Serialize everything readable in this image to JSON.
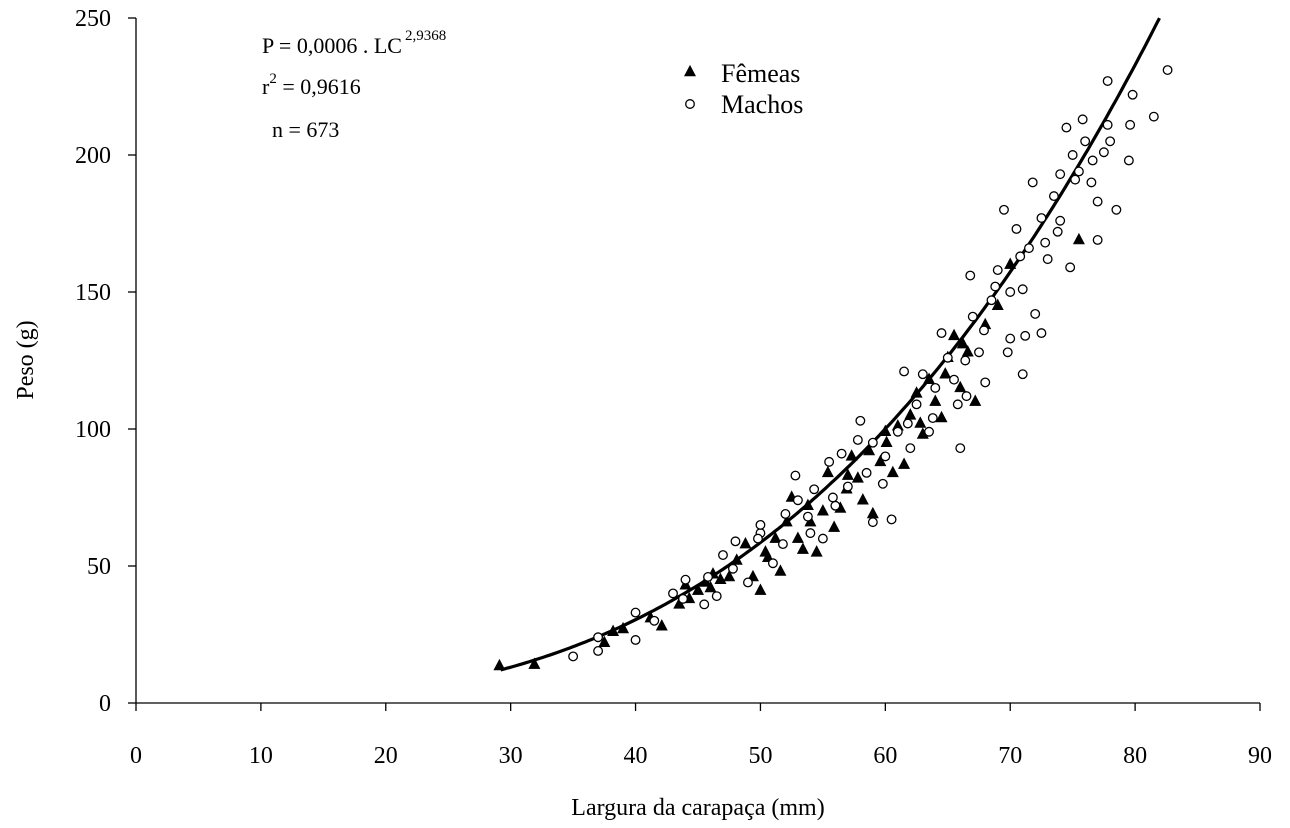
{
  "chart_data": {
    "type": "scatter",
    "xlabel": "Largura da carapaça (mm)",
    "ylabel": "Peso (g)",
    "xlim": [
      0,
      90
    ],
    "ylim": [
      0,
      250
    ],
    "xticks": [
      0,
      10,
      20,
      30,
      40,
      50,
      60,
      70,
      80,
      90
    ],
    "yticks": [
      0,
      50,
      100,
      150,
      200,
      250
    ],
    "grid": false,
    "legend_position": "top-center",
    "annotations": {
      "equation": {
        "main": "P = 0,0006 . LC",
        "exponent": "2,9368"
      },
      "r2": {
        "base": "r",
        "exponent": "2",
        "rest": " = 0,9616"
      },
      "n": "n = 673"
    },
    "fit": {
      "a": 0.0006,
      "b": 2.9368,
      "x_range": [
        29.2,
        84.2
      ]
    },
    "series": [
      {
        "name": "Fêmeas",
        "marker": "triangle-filled",
        "points": [
          [
            29.1,
            13.5
          ],
          [
            31.9,
            14.0
          ],
          [
            37.5,
            22
          ],
          [
            38.2,
            26
          ],
          [
            39.0,
            27
          ],
          [
            41.2,
            31
          ],
          [
            42.1,
            28
          ],
          [
            43.5,
            36
          ],
          [
            44.3,
            38
          ],
          [
            45.0,
            41
          ],
          [
            45.6,
            44
          ],
          [
            46.2,
            47
          ],
          [
            46.8,
            45
          ],
          [
            47.5,
            46
          ],
          [
            48.1,
            52
          ],
          [
            48.8,
            58
          ],
          [
            49.4,
            46
          ],
          [
            50.0,
            41
          ],
          [
            50.6,
            53
          ],
          [
            51.2,
            60
          ],
          [
            51.6,
            48
          ],
          [
            52.1,
            66
          ],
          [
            52.5,
            75
          ],
          [
            53.0,
            60
          ],
          [
            53.4,
            56
          ],
          [
            54.0,
            66
          ],
          [
            54.5,
            55
          ],
          [
            55.0,
            70
          ],
          [
            55.4,
            84
          ],
          [
            55.9,
            64
          ],
          [
            56.4,
            71
          ],
          [
            56.9,
            78
          ],
          [
            57.3,
            90
          ],
          [
            57.8,
            82
          ],
          [
            58.2,
            74
          ],
          [
            58.7,
            92
          ],
          [
            59.0,
            69
          ],
          [
            59.6,
            88
          ],
          [
            60.1,
            95
          ],
          [
            60.6,
            84
          ],
          [
            61.0,
            101
          ],
          [
            61.5,
            87
          ],
          [
            62.0,
            105
          ],
          [
            62.5,
            113
          ],
          [
            63.0,
            98
          ],
          [
            63.5,
            118
          ],
          [
            64.0,
            110
          ],
          [
            64.5,
            104
          ],
          [
            65.0,
            126
          ],
          [
            65.5,
            134
          ],
          [
            66.0,
            115
          ],
          [
            66.6,
            128
          ],
          [
            67.2,
            110
          ],
          [
            68.0,
            138
          ],
          [
            69.0,
            145
          ],
          [
            70.0,
            160
          ],
          [
            75.5,
            169
          ],
          [
            44.0,
            43
          ],
          [
            46.0,
            42
          ],
          [
            50.4,
            55
          ],
          [
            53.8,
            72
          ],
          [
            57.0,
            83
          ],
          [
            60.0,
            99
          ],
          [
            62.8,
            102
          ],
          [
            64.8,
            120
          ],
          [
            66.2,
            131
          ]
        ]
      },
      {
        "name": "Machos",
        "marker": "circle-open",
        "points": [
          [
            35.0,
            17
          ],
          [
            37.0,
            19
          ],
          [
            37.0,
            24
          ],
          [
            40.0,
            23
          ],
          [
            40.0,
            33
          ],
          [
            41.5,
            30
          ],
          [
            43.0,
            40
          ],
          [
            44.0,
            45
          ],
          [
            45.5,
            36
          ],
          [
            46.5,
            39
          ],
          [
            47.0,
            54
          ],
          [
            48.0,
            59
          ],
          [
            49.0,
            44
          ],
          [
            50.0,
            62
          ],
          [
            50.0,
            65
          ],
          [
            51.0,
            51
          ],
          [
            52.0,
            69
          ],
          [
            52.8,
            83
          ],
          [
            53.0,
            74
          ],
          [
            54.0,
            62
          ],
          [
            54.3,
            78
          ],
          [
            55.0,
            60
          ],
          [
            55.5,
            88
          ],
          [
            56.0,
            72
          ],
          [
            56.5,
            91
          ],
          [
            57.0,
            79
          ],
          [
            58.0,
            103
          ],
          [
            58.5,
            84
          ],
          [
            59.0,
            95
          ],
          [
            59.0,
            66
          ],
          [
            60.0,
            90
          ],
          [
            60.5,
            67
          ],
          [
            61.0,
            99
          ],
          [
            61.5,
            121
          ],
          [
            62.0,
            93
          ],
          [
            62.5,
            109
          ],
          [
            63.0,
            120
          ],
          [
            63.5,
            99
          ],
          [
            64.0,
            115
          ],
          [
            64.5,
            135
          ],
          [
            65.0,
            126
          ],
          [
            65.5,
            118
          ],
          [
            66.0,
            93
          ],
          [
            66.5,
            112
          ],
          [
            66.8,
            156
          ],
          [
            67.0,
            141
          ],
          [
            67.5,
            128
          ],
          [
            68.0,
            117
          ],
          [
            68.5,
            147
          ],
          [
            69.0,
            158
          ],
          [
            69.5,
            180
          ],
          [
            70.0,
            133
          ],
          [
            70.0,
            150
          ],
          [
            70.5,
            173
          ],
          [
            71.0,
            151
          ],
          [
            71.0,
            120
          ],
          [
            71.5,
            166
          ],
          [
            71.8,
            190
          ],
          [
            72.0,
            142
          ],
          [
            72.5,
            135
          ],
          [
            72.5,
            177
          ],
          [
            73.0,
            162
          ],
          [
            73.5,
            185
          ],
          [
            74.0,
            193
          ],
          [
            74.0,
            176
          ],
          [
            74.5,
            210
          ],
          [
            74.8,
            159
          ],
          [
            75.0,
            200
          ],
          [
            75.5,
            194
          ],
          [
            75.8,
            213
          ],
          [
            76.0,
            205
          ],
          [
            76.5,
            190
          ],
          [
            77.0,
            183
          ],
          [
            77.0,
            169
          ],
          [
            77.5,
            201
          ],
          [
            77.8,
            211
          ],
          [
            77.8,
            227
          ],
          [
            78.5,
            180
          ],
          [
            79.5,
            198
          ],
          [
            79.6,
            211
          ],
          [
            79.8,
            222
          ],
          [
            81.5,
            214
          ],
          [
            82.6,
            231
          ],
          [
            71.2,
            134
          ],
          [
            69.8,
            128
          ],
          [
            67.9,
            136
          ],
          [
            65.8,
            109
          ],
          [
            63.8,
            104
          ],
          [
            61.8,
            102
          ],
          [
            59.8,
            80
          ],
          [
            57.8,
            96
          ],
          [
            55.8,
            75
          ],
          [
            53.8,
            68
          ],
          [
            51.8,
            58
          ],
          [
            49.8,
            60
          ],
          [
            47.8,
            49
          ],
          [
            45.8,
            46
          ],
          [
            43.8,
            38
          ],
          [
            73.8,
            172
          ],
          [
            75.2,
            191
          ],
          [
            76.6,
            198
          ],
          [
            78.0,
            205
          ],
          [
            72.8,
            168
          ],
          [
            70.8,
            163
          ],
          [
            68.8,
            152
          ],
          [
            66.4,
            125
          ]
        ]
      }
    ]
  }
}
